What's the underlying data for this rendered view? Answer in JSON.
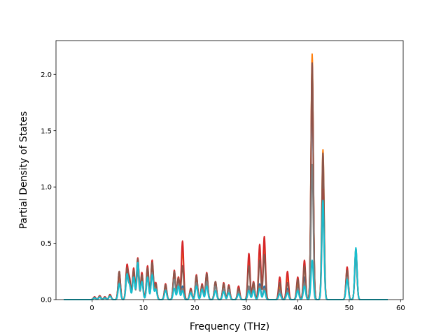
{
  "chart_data": {
    "type": "line",
    "title": "",
    "xlabel": "Frequency (THz)",
    "ylabel": "Partial Density of States",
    "xlim": [
      -7.0,
      60.5
    ],
    "ylim": [
      0.0,
      2.3
    ],
    "xticks": [
      0,
      10,
      20,
      30,
      40,
      50,
      60
    ],
    "yticks": [
      0.0,
      0.5,
      1.0,
      1.5,
      2.0
    ],
    "xtick_labels": [
      "0",
      "10",
      "20",
      "30",
      "40",
      "50",
      "60"
    ],
    "ytick_labels": [
      "0.0",
      "0.5",
      "1.0",
      "1.5",
      "2.0"
    ],
    "grid": false,
    "legend": false,
    "x_range": [
      -5.5,
      57.5
    ],
    "series": [
      {
        "color": "#1f77b4",
        "peaks": [
          [
            0.5,
            0.02
          ],
          [
            1.5,
            0.03
          ],
          [
            2.5,
            0.02
          ],
          [
            3.5,
            0.04
          ],
          [
            5.3,
            0.2
          ],
          [
            6.8,
            0.26
          ],
          [
            7.3,
            0.15
          ],
          [
            8.1,
            0.24
          ],
          [
            8.9,
            0.3
          ],
          [
            9.7,
            0.2
          ],
          [
            10.8,
            0.25
          ],
          [
            11.7,
            0.3
          ],
          [
            12.4,
            0.12
          ],
          [
            14.3,
            0.1
          ],
          [
            16.0,
            0.22
          ],
          [
            16.8,
            0.18
          ],
          [
            17.6,
            0.12
          ],
          [
            19.2,
            0.08
          ],
          [
            20.3,
            0.18
          ],
          [
            21.4,
            0.12
          ],
          [
            22.3,
            0.2
          ],
          [
            24.0,
            0.14
          ],
          [
            25.6,
            0.12
          ],
          [
            26.6,
            0.1
          ],
          [
            28.5,
            0.08
          ],
          [
            30.5,
            0.1
          ],
          [
            31.4,
            0.12
          ],
          [
            32.6,
            0.14
          ],
          [
            33.5,
            0.12
          ],
          [
            36.5,
            0.1
          ],
          [
            38.0,
            0.1
          ],
          [
            40.0,
            0.12
          ],
          [
            41.3,
            0.2
          ],
          [
            42.8,
            1.9
          ],
          [
            44.9,
            1.2
          ],
          [
            49.6,
            0.25
          ],
          [
            51.3,
            0.45
          ]
        ]
      },
      {
        "color": "#ff7f0e",
        "peaks": [
          [
            0.5,
            0.02
          ],
          [
            1.5,
            0.03
          ],
          [
            2.5,
            0.02
          ],
          [
            3.5,
            0.04
          ],
          [
            5.3,
            0.22
          ],
          [
            6.8,
            0.29
          ],
          [
            7.3,
            0.16
          ],
          [
            8.1,
            0.26
          ],
          [
            8.9,
            0.35
          ],
          [
            9.7,
            0.22
          ],
          [
            10.8,
            0.27
          ],
          [
            11.7,
            0.32
          ],
          [
            12.4,
            0.13
          ],
          [
            14.3,
            0.12
          ],
          [
            16.0,
            0.24
          ],
          [
            16.8,
            0.2
          ],
          [
            17.6,
            0.45
          ],
          [
            19.2,
            0.09
          ],
          [
            20.3,
            0.2
          ],
          [
            21.4,
            0.13
          ],
          [
            22.3,
            0.22
          ],
          [
            24.0,
            0.15
          ],
          [
            25.6,
            0.13
          ],
          [
            26.6,
            0.11
          ],
          [
            28.5,
            0.09
          ],
          [
            30.5,
            0.35
          ],
          [
            31.4,
            0.14
          ],
          [
            32.6,
            0.45
          ],
          [
            33.5,
            0.5
          ],
          [
            36.5,
            0.12
          ],
          [
            38.0,
            0.2
          ],
          [
            40.0,
            0.15
          ],
          [
            41.3,
            0.3
          ],
          [
            42.8,
            2.18
          ],
          [
            44.9,
            1.33
          ],
          [
            49.6,
            0.28
          ],
          [
            51.3,
            0.45
          ]
        ]
      },
      {
        "color": "#d62728",
        "peaks": [
          [
            0.5,
            0.025
          ],
          [
            1.5,
            0.035
          ],
          [
            2.5,
            0.025
          ],
          [
            3.5,
            0.045
          ],
          [
            5.3,
            0.25
          ],
          [
            6.8,
            0.3
          ],
          [
            7.3,
            0.18
          ],
          [
            8.1,
            0.28
          ],
          [
            8.9,
            0.37
          ],
          [
            9.7,
            0.24
          ],
          [
            10.8,
            0.3
          ],
          [
            11.7,
            0.35
          ],
          [
            12.4,
            0.15
          ],
          [
            14.3,
            0.14
          ],
          [
            16.0,
            0.26
          ],
          [
            16.8,
            0.2
          ],
          [
            17.6,
            0.52
          ],
          [
            19.2,
            0.1
          ],
          [
            20.3,
            0.22
          ],
          [
            21.4,
            0.14
          ],
          [
            22.3,
            0.24
          ],
          [
            24.0,
            0.16
          ],
          [
            25.6,
            0.15
          ],
          [
            26.6,
            0.13
          ],
          [
            28.5,
            0.12
          ],
          [
            30.5,
            0.41
          ],
          [
            31.4,
            0.16
          ],
          [
            32.6,
            0.49
          ],
          [
            33.5,
            0.56
          ],
          [
            36.5,
            0.2
          ],
          [
            38.0,
            0.25
          ],
          [
            40.0,
            0.2
          ],
          [
            41.3,
            0.35
          ],
          [
            42.8,
            2.1
          ],
          [
            44.9,
            0.98
          ],
          [
            49.6,
            0.29
          ],
          [
            51.3,
            0.4
          ]
        ]
      },
      {
        "color": "#8c564b",
        "peaks": [
          [
            0.5,
            0.02
          ],
          [
            1.5,
            0.03
          ],
          [
            2.5,
            0.02
          ],
          [
            3.5,
            0.04
          ],
          [
            5.3,
            0.25
          ],
          [
            6.8,
            0.27
          ],
          [
            7.3,
            0.16
          ],
          [
            8.1,
            0.26
          ],
          [
            8.9,
            0.36
          ],
          [
            9.7,
            0.22
          ],
          [
            10.8,
            0.28
          ],
          [
            11.7,
            0.33
          ],
          [
            12.4,
            0.14
          ],
          [
            14.3,
            0.13
          ],
          [
            16.0,
            0.25
          ],
          [
            16.8,
            0.19
          ],
          [
            17.6,
            0.3
          ],
          [
            19.2,
            0.09
          ],
          [
            20.3,
            0.21
          ],
          [
            21.4,
            0.13
          ],
          [
            22.3,
            0.23
          ],
          [
            24.0,
            0.16
          ],
          [
            25.6,
            0.14
          ],
          [
            26.6,
            0.12
          ],
          [
            28.5,
            0.1
          ],
          [
            30.5,
            0.3
          ],
          [
            31.4,
            0.15
          ],
          [
            32.6,
            0.35
          ],
          [
            33.5,
            0.4
          ],
          [
            36.5,
            0.15
          ],
          [
            38.0,
            0.15
          ],
          [
            40.0,
            0.18
          ],
          [
            41.3,
            0.3
          ],
          [
            42.8,
            2.1
          ],
          [
            44.9,
            1.3
          ],
          [
            49.6,
            0.26
          ],
          [
            51.3,
            0.43
          ]
        ]
      },
      {
        "color": "#7f7f7f",
        "peaks": [
          [
            0.5,
            0.015
          ],
          [
            1.5,
            0.025
          ],
          [
            2.5,
            0.015
          ],
          [
            3.5,
            0.03
          ],
          [
            5.3,
            0.15
          ],
          [
            6.8,
            0.2
          ],
          [
            7.3,
            0.12
          ],
          [
            8.1,
            0.2
          ],
          [
            8.9,
            0.25
          ],
          [
            9.7,
            0.16
          ],
          [
            10.8,
            0.2
          ],
          [
            11.7,
            0.24
          ],
          [
            12.4,
            0.1
          ],
          [
            14.3,
            0.09
          ],
          [
            16.0,
            0.18
          ],
          [
            16.8,
            0.14
          ],
          [
            17.6,
            0.1
          ],
          [
            19.2,
            0.07
          ],
          [
            20.3,
            0.15
          ],
          [
            21.4,
            0.1
          ],
          [
            22.3,
            0.16
          ],
          [
            24.0,
            0.12
          ],
          [
            25.6,
            0.1
          ],
          [
            26.6,
            0.09
          ],
          [
            28.5,
            0.07
          ],
          [
            30.5,
            0.12
          ],
          [
            31.4,
            0.1
          ],
          [
            32.6,
            0.12
          ],
          [
            33.5,
            0.1
          ],
          [
            36.5,
            0.08
          ],
          [
            38.0,
            0.08
          ],
          [
            40.0,
            0.1
          ],
          [
            41.3,
            0.15
          ],
          [
            42.8,
            1.2
          ],
          [
            44.9,
            0.8
          ],
          [
            49.6,
            0.2
          ],
          [
            51.3,
            0.38
          ]
        ]
      },
      {
        "color": "#17becf",
        "peaks": [
          [
            0.5,
            0.015
          ],
          [
            1.5,
            0.02
          ],
          [
            2.5,
            0.015
          ],
          [
            3.5,
            0.03
          ],
          [
            5.3,
            0.14
          ],
          [
            6.8,
            0.22
          ],
          [
            7.3,
            0.12
          ],
          [
            8.1,
            0.2
          ],
          [
            8.9,
            0.33
          ],
          [
            9.7,
            0.16
          ],
          [
            10.8,
            0.2
          ],
          [
            11.7,
            0.22
          ],
          [
            12.4,
            0.09
          ],
          [
            14.3,
            0.08
          ],
          [
            16.0,
            0.1
          ],
          [
            16.8,
            0.12
          ],
          [
            17.6,
            0.08
          ],
          [
            19.2,
            0.06
          ],
          [
            20.3,
            0.12
          ],
          [
            21.4,
            0.09
          ],
          [
            22.3,
            0.12
          ],
          [
            24.0,
            0.08
          ],
          [
            25.6,
            0.07
          ],
          [
            26.6,
            0.06
          ],
          [
            28.5,
            0.05
          ],
          [
            30.5,
            0.08
          ],
          [
            31.4,
            0.08
          ],
          [
            32.6,
            0.1
          ],
          [
            33.5,
            0.08
          ],
          [
            36.5,
            0.05
          ],
          [
            38.0,
            0.06
          ],
          [
            40.0,
            0.08
          ],
          [
            41.3,
            0.12
          ],
          [
            42.8,
            0.35
          ],
          [
            44.9,
            0.88
          ],
          [
            49.6,
            0.18
          ],
          [
            51.3,
            0.46
          ]
        ]
      }
    ]
  }
}
